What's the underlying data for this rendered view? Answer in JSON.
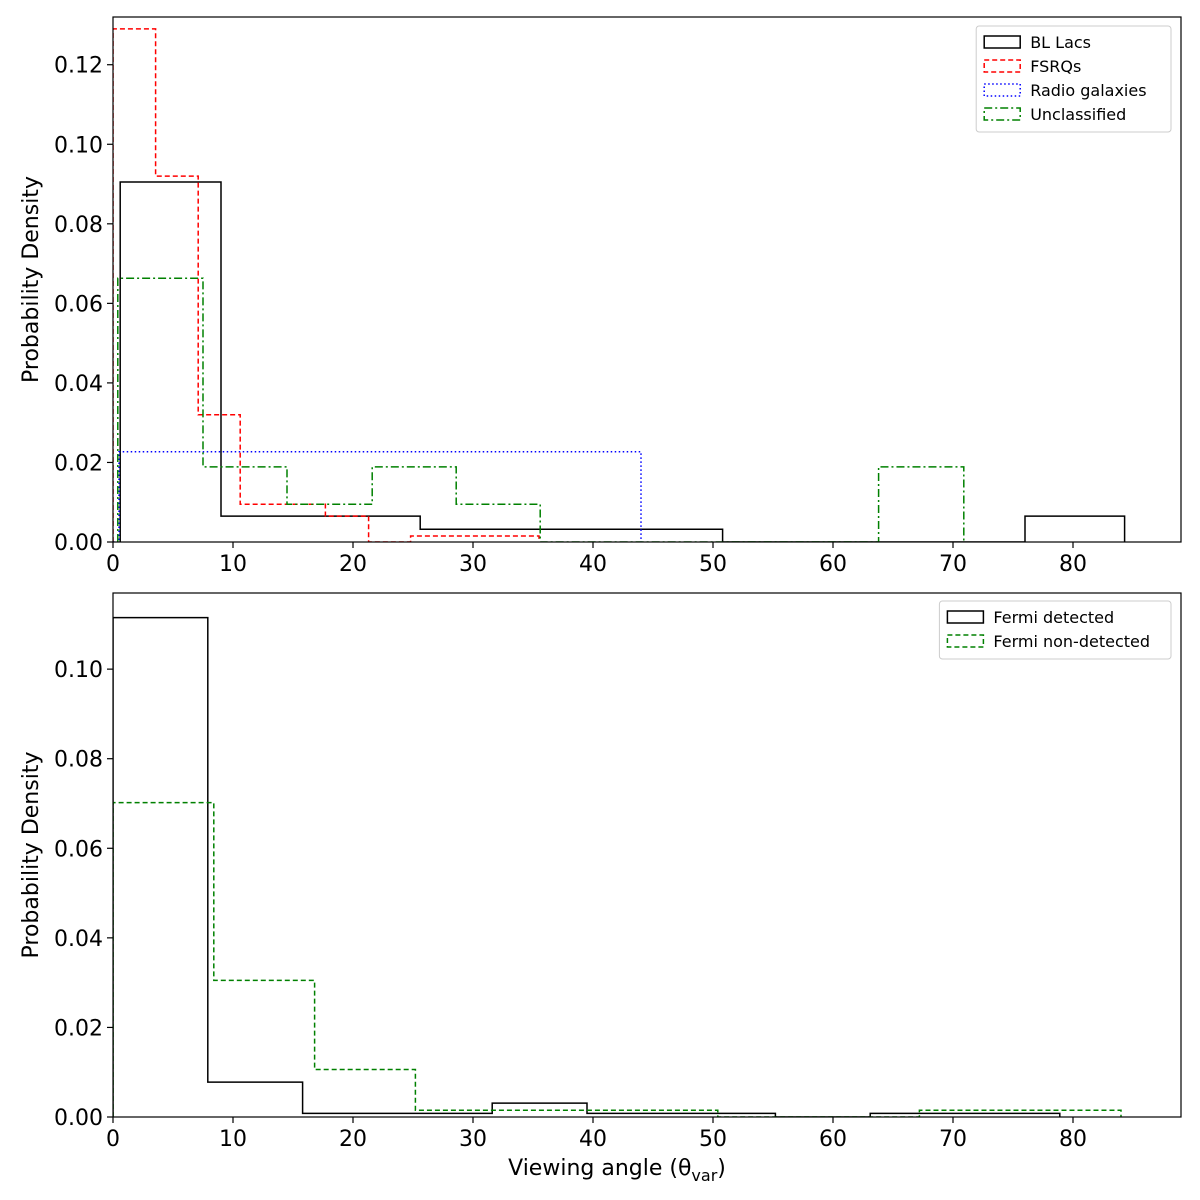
{
  "chart_data": [
    {
      "type": "histogram",
      "title": "",
      "xlabel": "",
      "ylabel": "Probability Density",
      "xlim": [
        0,
        89
      ],
      "ylim": [
        0,
        0.132
      ],
      "xticks": [
        0,
        10,
        20,
        30,
        40,
        50,
        60,
        70,
        80
      ],
      "yticks": [
        0.0,
        0.02,
        0.04,
        0.06,
        0.08,
        0.1,
        0.12
      ],
      "legend_position": "top-right",
      "series": [
        {
          "name": "BL Lacs",
          "color": "#000000",
          "style": "solid",
          "bin_edges": [
            0.6,
            9.0,
            17.2,
            25.6,
            34.0,
            42.4,
            50.8,
            59.2,
            67.6,
            76.0,
            84.3
          ],
          "values": [
            0.0905,
            0.0065,
            0.0065,
            0.0032,
            0.0032,
            0.0032,
            0.0,
            0.0,
            0.0,
            0.0065
          ]
        },
        {
          "name": "FSRQs",
          "color": "#ff0000",
          "style": "dashed",
          "bin_edges": [
            0.0,
            3.55,
            7.1,
            10.6,
            14.2,
            17.7,
            21.3,
            24.8,
            28.4,
            31.9,
            35.5
          ],
          "values": [
            0.129,
            0.092,
            0.032,
            0.0095,
            0.0095,
            0.0065,
            0.0,
            0.0015,
            0.0015,
            0.0015
          ]
        },
        {
          "name": "Radio galaxies",
          "color": "#0000ff",
          "style": "dotted",
          "bin_edges": [
            0.0,
            0.1,
            0.2,
            0.3,
            0.4,
            0.5,
            44.0
          ],
          "values": [
            0.0,
            0.0,
            0.0,
            0.0,
            0.0,
            0.0227
          ]
        },
        {
          "name": "Unclassified",
          "color": "#008000",
          "style": "dashdot",
          "bin_edges": [
            0.4,
            7.5,
            14.5,
            21.6,
            28.6,
            35.6,
            42.7,
            49.7,
            56.8,
            63.8,
            70.9
          ],
          "values": [
            0.0663,
            0.0189,
            0.0095,
            0.0189,
            0.0095,
            0.0,
            0.0,
            0.0,
            0.0,
            0.0189
          ]
        }
      ]
    },
    {
      "type": "histogram",
      "title": "",
      "xlabel": "Viewing angle (θ",
      "xlabel_subscript": "var",
      "xlabel_suffix": ")",
      "ylabel": "Probability Density",
      "xlim": [
        0,
        89
      ],
      "ylim": [
        0,
        0.117
      ],
      "xticks": [
        0,
        10,
        20,
        30,
        40,
        50,
        60,
        70,
        80
      ],
      "yticks": [
        0.0,
        0.02,
        0.04,
        0.06,
        0.08,
        0.1
      ],
      "legend_position": "top-right",
      "series": [
        {
          "name": "Fermi detected",
          "color": "#000000",
          "style": "solid",
          "bin_edges": [
            0.0,
            7.9,
            15.8,
            23.7,
            31.6,
            39.5,
            47.4,
            55.2,
            63.1,
            71.0,
            78.9
          ],
          "values": [
            0.1115,
            0.0078,
            0.0008,
            0.0008,
            0.0031,
            0.0008,
            0.0008,
            0.0,
            0.0008,
            0.0008
          ]
        },
        {
          "name": "Fermi non-detected",
          "color": "#008000",
          "style": "dashed",
          "bin_edges": [
            0.0,
            8.4,
            16.8,
            25.2,
            33.6,
            42.0,
            50.4,
            58.8,
            67.2,
            75.6,
            84.0
          ],
          "values": [
            0.0702,
            0.0305,
            0.0106,
            0.0015,
            0.0015,
            0.0015,
            0.0,
            0.0,
            0.0015,
            0.0015
          ]
        }
      ]
    }
  ]
}
